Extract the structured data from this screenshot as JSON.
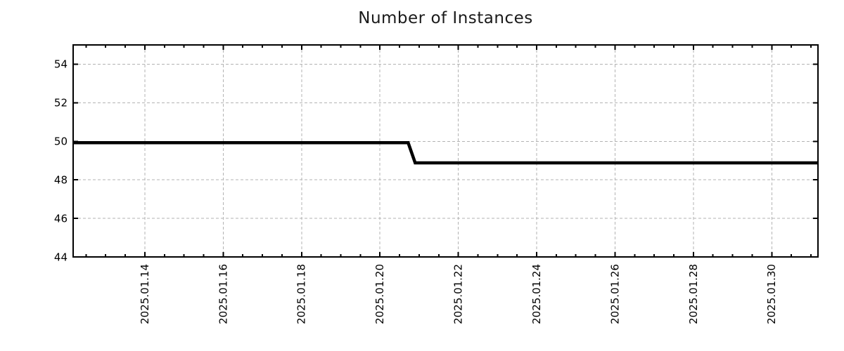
{
  "chart_data": {
    "type": "line",
    "title": "Number of Instances",
    "xlabel": "",
    "ylabel": "",
    "legend": {
      "show": false
    },
    "grid": {
      "show": true,
      "color": "#b3b3b3",
      "dash": "4 3"
    },
    "style": {
      "axis_color": "#000000",
      "text_color": "#1a1a1a",
      "background": "#ffffff"
    },
    "x_axis": {
      "unit": "date",
      "domain_days_of_january_2025": [
        12.17,
        31.18
      ],
      "minor_tick_interval_days": 0.5,
      "major_ticks": [
        {
          "day": 14,
          "label": "2025.01.14"
        },
        {
          "day": 16,
          "label": "2025.01.16"
        },
        {
          "day": 18,
          "label": "2025.01.18"
        },
        {
          "day": 20,
          "label": "2025.01.20"
        },
        {
          "day": 22,
          "label": "2025.01.22"
        },
        {
          "day": 24,
          "label": "2025.01.24"
        },
        {
          "day": 26,
          "label": "2025.01.26"
        },
        {
          "day": 28,
          "label": "2025.01.28"
        },
        {
          "day": 30,
          "label": "2025.01.30"
        }
      ]
    },
    "y_axis": {
      "min": 44,
      "max": 55,
      "tick_labels": [
        "44",
        "46",
        "48",
        "50",
        "52",
        "54"
      ],
      "tick_values": [
        44,
        46,
        48,
        50,
        52,
        54
      ]
    },
    "series": [
      {
        "id": "instances",
        "color": "#000000",
        "line_width": 4.5,
        "points": [
          {
            "day": 12.17,
            "value": 49.93
          },
          {
            "day": 20.72,
            "value": 49.93
          },
          {
            "day": 20.9,
            "value": 48.88
          },
          {
            "day": 31.18,
            "value": 48.88
          }
        ]
      }
    ]
  }
}
